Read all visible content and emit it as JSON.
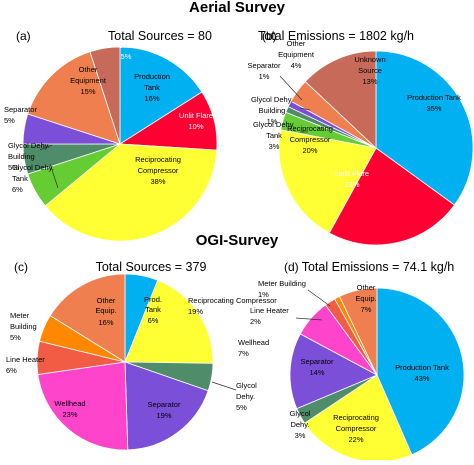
{
  "section_titles": {
    "top": "Aerial Survey",
    "bottom": "OGI-Survey"
  },
  "chart_data": [
    {
      "type": "pie",
      "panel": "(a)",
      "title": "Total Sources = 80",
      "unit": "%",
      "slices": [
        {
          "label": "Production Tank",
          "value": 16,
          "color": "#00b0f0"
        },
        {
          "label": "Unlit Flare",
          "value": 10,
          "color": "#ff0033"
        },
        {
          "label": "Reciprocating Compressor",
          "value": 38,
          "color": "#ffff33"
        },
        {
          "label": "Glycol Dehy. Tank",
          "value": 6,
          "color": "#66cc33"
        },
        {
          "label": "Glycol Dehy. Building",
          "value": 5,
          "color": "#4f8c6a"
        },
        {
          "label": "Separator",
          "value": 5,
          "color": "#7b4fd8"
        },
        {
          "label": "Other Equipment",
          "value": 15,
          "color": "#f07f4f"
        },
        {
          "label": "Unk.",
          "value": 5,
          "color": "#c86a5a"
        }
      ]
    },
    {
      "type": "pie",
      "panel": "(b)",
      "title": "Total Emissions = 1802 kg/h",
      "unit": "%",
      "slices": [
        {
          "label": "Production Tank",
          "value": 35,
          "color": "#00b0f0"
        },
        {
          "label": "Unlit Flare",
          "value": 23,
          "color": "#ff0033"
        },
        {
          "label": "Reciprocating Compressor",
          "value": 20,
          "color": "#ffff33"
        },
        {
          "label": "Glycol Dehy. Tank",
          "value": 3,
          "color": "#66cc33"
        },
        {
          "label": "Glycol Dehy. Building",
          "value": 1,
          "color": "#4f8c6a"
        },
        {
          "label": "Separator",
          "value": 1,
          "color": "#7b4fd8"
        },
        {
          "label": "Other Equipment",
          "value": 4,
          "color": "#f07f4f"
        },
        {
          "label": "Unknown Source",
          "value": 13,
          "color": "#c86a5a"
        }
      ]
    },
    {
      "type": "pie",
      "panel": "(c)",
      "title": "Total Sources = 379",
      "unit": "%",
      "slices": [
        {
          "label": "Prod. Tank",
          "value": 6,
          "color": "#00b0f0"
        },
        {
          "label": "Reciprocating Compressor",
          "value": 19,
          "color": "#ffff33"
        },
        {
          "label": "Glycol Dehy.",
          "value": 5,
          "color": "#4f8c6a"
        },
        {
          "label": "Separator",
          "value": 19,
          "color": "#7b4fd8"
        },
        {
          "label": "Wellhead",
          "value": 23,
          "color": "#ff44cc"
        },
        {
          "label": "Line Heater",
          "value": 6,
          "color": "#f25c44"
        },
        {
          "label": "Meter Building",
          "value": 5,
          "color": "#ff8800"
        },
        {
          "label": "Other Equip.",
          "value": 16,
          "color": "#f07f4f"
        }
      ]
    },
    {
      "type": "pie",
      "panel": "(d)",
      "title": "Total Emissions = 74.1 kg/h",
      "unit": "%",
      "slices": [
        {
          "label": "Production Tank",
          "value": 43,
          "color": "#00b0f0"
        },
        {
          "label": "Reciprocating Compressor",
          "value": 22,
          "color": "#ffff33"
        },
        {
          "label": "Glycol Dehy.",
          "value": 3,
          "color": "#4f8c6a"
        },
        {
          "label": "Separator",
          "value": 14,
          "color": "#7b4fd8"
        },
        {
          "label": "Wellhead",
          "value": 7,
          "color": "#ff44cc"
        },
        {
          "label": "Line Heater",
          "value": 2,
          "color": "#f25c44"
        },
        {
          "label": "Meter Building",
          "value": 1,
          "color": "#ff8800"
        },
        {
          "label": "Other Equip.",
          "value": 7,
          "color": "#f07f4f"
        }
      ]
    }
  ]
}
